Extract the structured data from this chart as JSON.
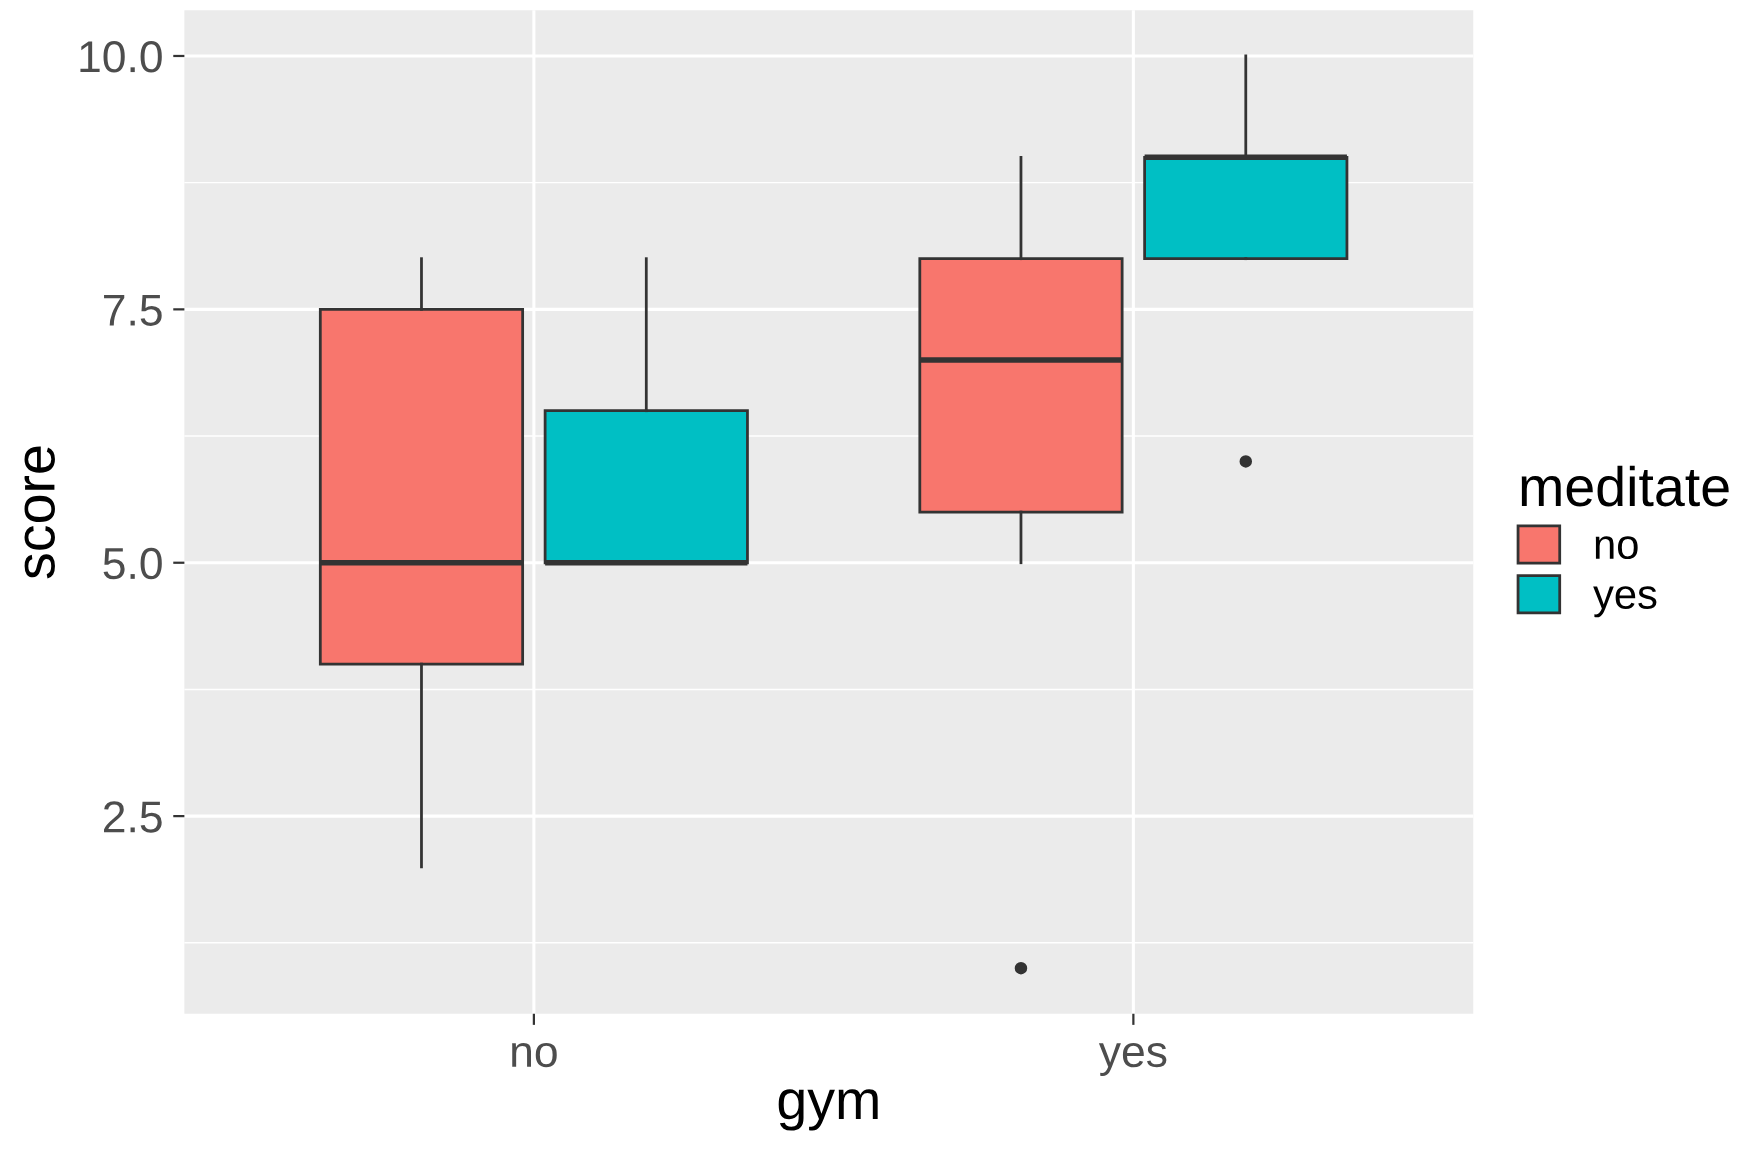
{
  "chart_data": {
    "type": "box",
    "xlabel": "gym",
    "ylabel": "score",
    "legend_title": "meditate",
    "categories": [
      "no",
      "yes"
    ],
    "series": [
      {
        "name": "no",
        "color": "#f8766d",
        "boxes": [
          {
            "low": 2,
            "q1": 4,
            "median": 5,
            "q3": 7.5,
            "high": 8
          },
          {
            "low": 5,
            "q1": 5.5,
            "median": 7,
            "q3": 8,
            "high": 9,
            "outliers": [
              1
            ]
          }
        ]
      },
      {
        "name": "yes",
        "color": "#00bfc4",
        "boxes": [
          {
            "low": 5,
            "q1": 5,
            "median": 5,
            "q3": 6.5,
            "high": 8
          },
          {
            "low": 8,
            "q1": 8,
            "median": 9,
            "q3": 9,
            "high": 10,
            "outliers": [
              6
            ]
          }
        ]
      }
    ],
    "ylim": [
      0.55,
      10.45
    ],
    "yticks": [
      {
        "value": 2.5,
        "label": "2.5"
      },
      {
        "value": 5,
        "label": "5.0"
      },
      {
        "value": 7.5,
        "label": "7.5"
      },
      {
        "value": 10,
        "label": "10.0"
      }
    ],
    "grid": true,
    "legend": "right"
  }
}
